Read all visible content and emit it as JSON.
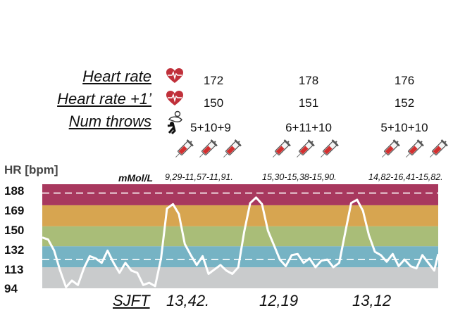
{
  "rows": {
    "heart_rate": {
      "label": "Heart rate",
      "values": [
        "172",
        "178",
        "176"
      ]
    },
    "heart_rate_plus1": {
      "label": "Heart rate +1’",
      "values": [
        "150",
        "151",
        "152"
      ]
    },
    "num_throws": {
      "label": "Num throws",
      "values": [
        "5+10+9",
        "6+11+10",
        "5+10+10"
      ]
    }
  },
  "lactate": {
    "unit": "mMol/L",
    "values": [
      "9,29-11,57-11,91.",
      "15,30-15,38-15,90.",
      "14,82-16,41-15,82."
    ]
  },
  "sjft": {
    "label": "SJFT",
    "values": [
      "13,42.",
      "12,19",
      "13,12"
    ]
  },
  "icons": [
    "heart-ecg-icon",
    "judo-throw-icon",
    "syringe-icon"
  ],
  "chart_data": {
    "type": "line",
    "ylabel": "HR [bpm]",
    "yticks": [
      94,
      113,
      132,
      150,
      169,
      188
    ],
    "ylim": [
      94,
      188
    ],
    "xlim": [
      0,
      100
    ],
    "zones": [
      {
        "from": 94,
        "to": 113,
        "color": "#c9cbcc"
      },
      {
        "from": 113,
        "to": 132,
        "color": "#76b3c4"
      },
      {
        "from": 132,
        "to": 150,
        "color": "#a9bd78"
      },
      {
        "from": 150,
        "to": 169,
        "color": "#d7a550"
      },
      {
        "from": 169,
        "to": 188,
        "color": "#a8385e"
      }
    ],
    "dashed_lines": [
      180,
      120
    ],
    "series": [
      {
        "color": "#ffffff",
        "x": [
          0,
          1.5,
          3,
          4.5,
          6,
          7.5,
          9,
          10.5,
          12,
          13.5,
          15,
          16.5,
          18,
          19.5,
          21,
          22.5,
          24,
          25.5,
          27,
          28.5,
          30,
          31.5,
          33,
          34.5,
          36,
          37.5,
          39,
          40.5,
          42,
          43.5,
          45,
          46.5,
          48,
          49.5,
          51,
          52.5,
          54,
          55.5,
          57,
          58.5,
          60,
          61.5,
          63,
          64.5,
          66,
          67.5,
          69,
          70.5,
          72,
          73.5,
          75,
          76.5,
          78,
          79.5,
          81,
          82.5,
          84,
          85.5,
          87,
          88.5,
          90,
          91.5,
          93,
          94.5,
          96,
          97.5,
          99,
          100
        ],
        "y": [
          140,
          138,
          128,
          110,
          95,
          101,
          97,
          112,
          123,
          121,
          117,
          128,
          117,
          108,
          117,
          110,
          108,
          97,
          99,
          96,
          121,
          166,
          170,
          161,
          134,
          124,
          115,
          123,
          107,
          111,
          115,
          110,
          107,
          113,
          145,
          171,
          176,
          170,
          146,
          133,
          120,
          114,
          124,
          125,
          117,
          121,
          113,
          119,
          120,
          113,
          117,
          144,
          171,
          174,
          164,
          142,
          127,
          124,
          118,
          125,
          114,
          120,
          114,
          112,
          124,
          117,
          110,
          125
        ]
      }
    ]
  }
}
